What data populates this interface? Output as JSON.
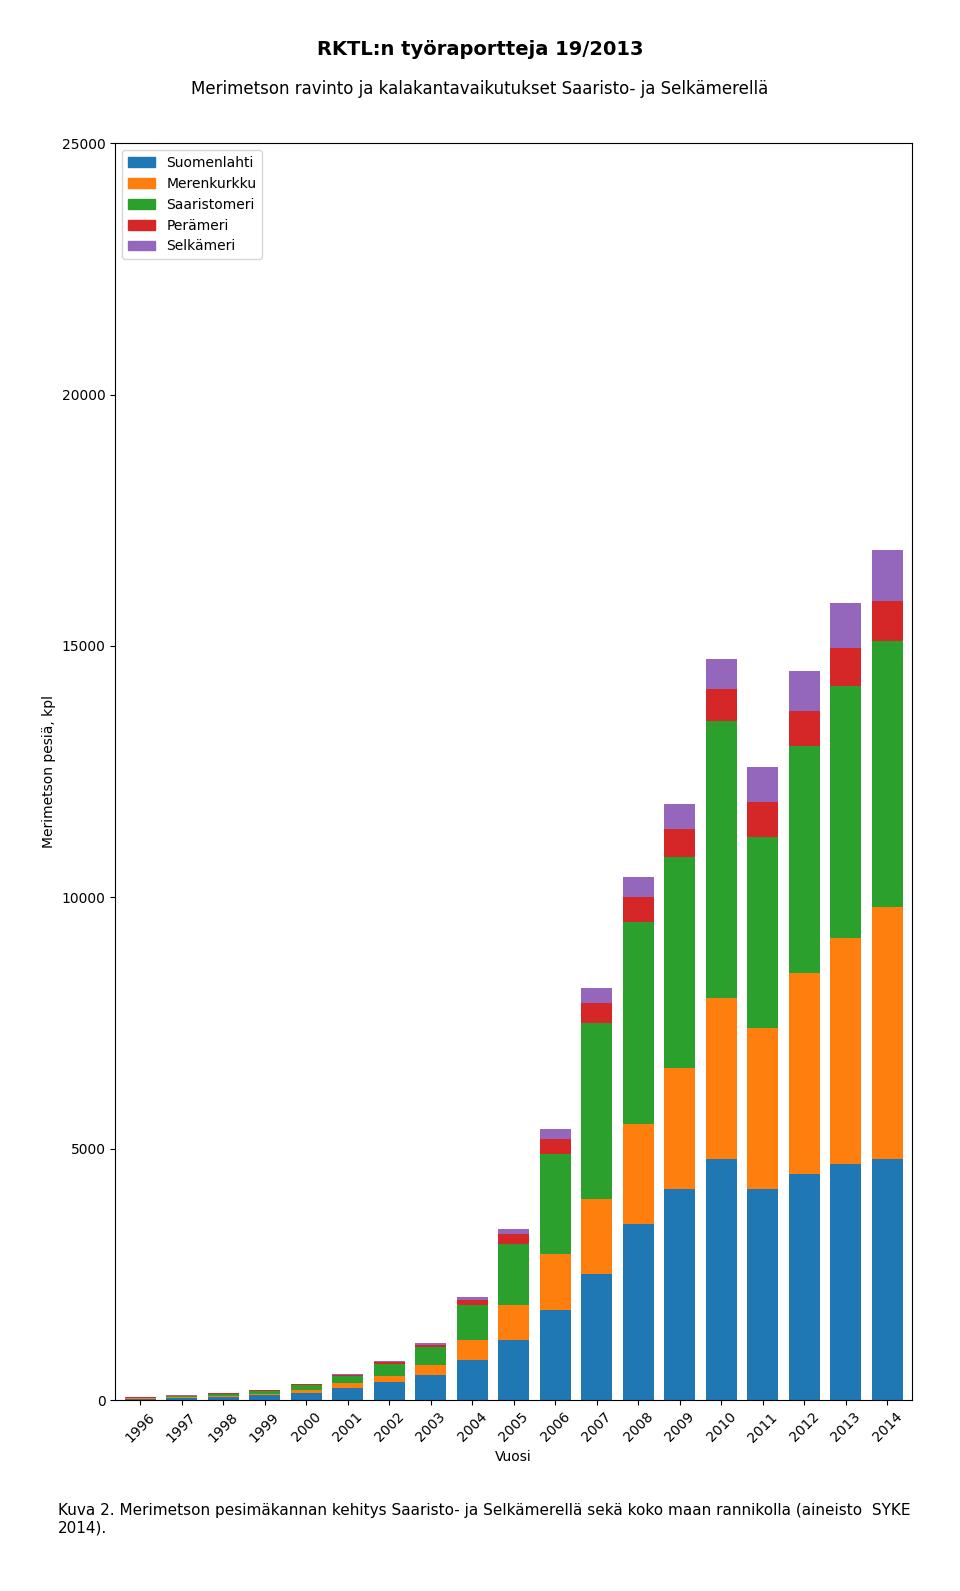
{
  "chart_data": {
    "type": "bar",
    "stacked": true,
    "title": "RKTL:n työraportteja 19/2013",
    "subtitle": "Merimetson ravinto ja kalakantavaikutukset Saaristo- ja Selkämerellä",
    "x_label": "Vuosi",
    "y_label": "Merimetson pesiä, kpl",
    "categories": [
      "1996",
      "1997",
      "1998",
      "1999",
      "2000",
      "2001",
      "2002",
      "2003",
      "2004",
      "2005",
      "2006",
      "2007",
      "2008",
      "2009",
      "2010",
      "2011",
      "2012",
      "2013",
      "2014"
    ],
    "series": [
      {
        "name": "Suomenlahti",
        "values": [
          30,
          50,
          70,
          100,
          150,
          250,
          350,
          500,
          800,
          1200,
          1800,
          2500,
          3500,
          4200,
          4800,
          4200,
          4500,
          4700,
          4800
        ]
      },
      {
        "name": "Merenkurkku",
        "values": [
          10,
          15,
          20,
          30,
          50,
          80,
          120,
          200,
          400,
          700,
          1100,
          1500,
          2000,
          2400,
          3200,
          3200,
          4000,
          4500,
          5000
        ]
      },
      {
        "name": "Saaristomeri",
        "values": [
          10,
          20,
          40,
          60,
          100,
          150,
          250,
          350,
          700,
          1200,
          2000,
          3500,
          4000,
          4200,
          5500,
          3800,
          4500,
          5000,
          5300
        ]
      },
      {
        "name": "Perämeri",
        "values": [
          5,
          5,
          8,
          10,
          15,
          20,
          30,
          50,
          100,
          200,
          300,
          400,
          500,
          550,
          650,
          700,
          700,
          750,
          800
        ]
      },
      {
        "name": "Selkämeri",
        "values": [
          2,
          3,
          5,
          8,
          10,
          15,
          20,
          30,
          50,
          100,
          200,
          300,
          400,
          500,
          600,
          700,
          800,
          900,
          1000
        ]
      }
    ],
    "ylim": [
      0,
      25000
    ],
    "yticks": [
      0,
      5000,
      10000,
      15000,
      20000,
      25000
    ],
    "grid": false,
    "legend": "upper left",
    "annotations": [
      "Kuva 2. Merimetson pesimäkannan kehitys Saaristo- ja Selkämerellä sekä koko maan rannikolla (aineisto  SYKE 2014)."
    ]
  }
}
